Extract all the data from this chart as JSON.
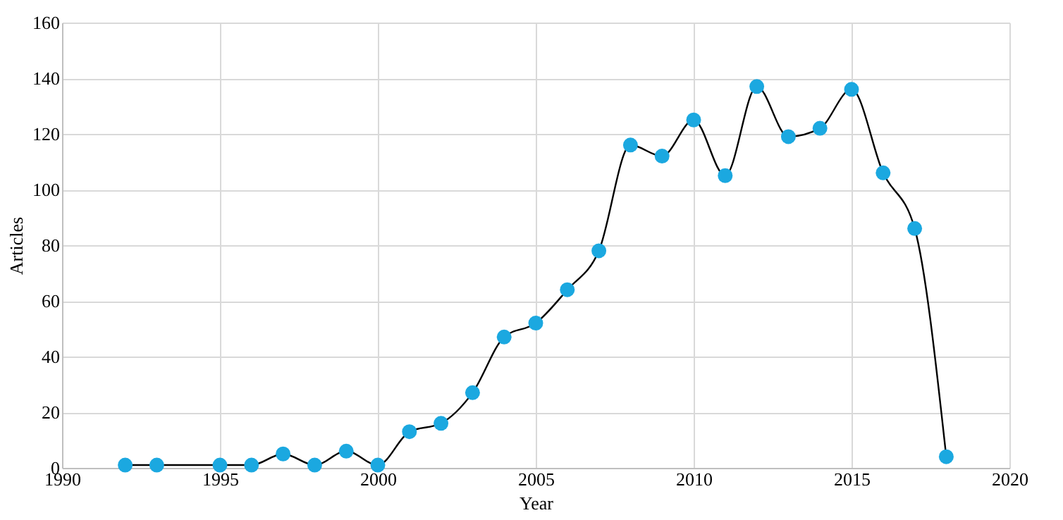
{
  "chart_data": {
    "type": "line",
    "xlabel": "Year",
    "ylabel": "Articles",
    "x": [
      1992,
      1993,
      1995,
      1996,
      1997,
      1998,
      1999,
      2000,
      2001,
      2002,
      2003,
      2004,
      2005,
      2006,
      2007,
      2008,
      2009,
      2010,
      2011,
      2012,
      2013,
      2014,
      2015,
      2016,
      2017,
      2018
    ],
    "series": [
      {
        "color": "#1ba8e0",
        "values": [
          1,
          1,
          1,
          1,
          5,
          1,
          6,
          1,
          13,
          16,
          27,
          47,
          52,
          64,
          78,
          116,
          112,
          125,
          105,
          137,
          119,
          122,
          136,
          106,
          86,
          4
        ]
      }
    ],
    "xlim": [
      1990,
      2020
    ],
    "xticks": [
      1990,
      1995,
      2000,
      2005,
      2010,
      2015,
      2020
    ],
    "ylim": [
      0,
      160
    ],
    "yticks": [
      0,
      20,
      40,
      60,
      80,
      100,
      120,
      140,
      160
    ],
    "grid": true,
    "marker": "circle",
    "line_style": "solid"
  }
}
